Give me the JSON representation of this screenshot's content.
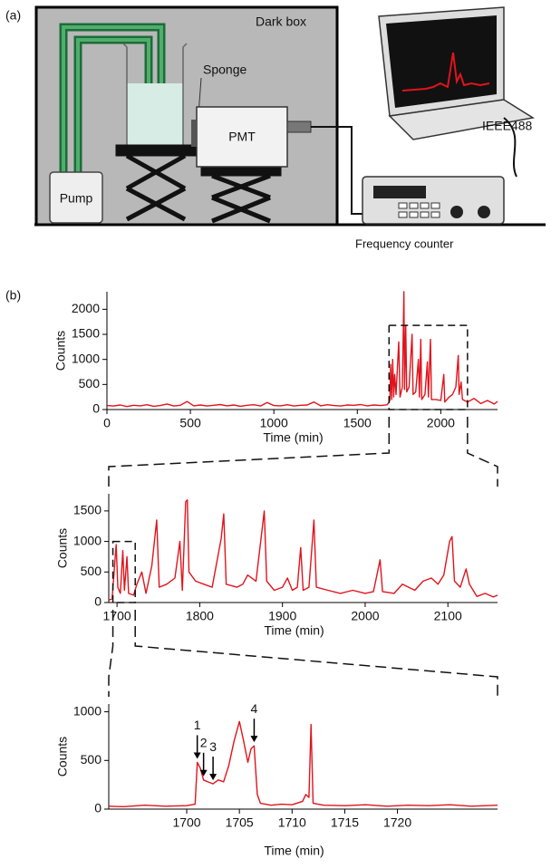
{
  "diagram": {
    "panel_label": "(a)",
    "dark_box": "Dark box",
    "sponge": "Sponge",
    "pmt": "PMT",
    "pump": "Pump",
    "interface": "IEEE488",
    "counter": "Frequency counter"
  },
  "panel_b_label": "(b)",
  "chart_data": [
    {
      "type": "line",
      "x_label": "Time (min)",
      "y_label": "Counts",
      "color": "#e0141c",
      "xlim": [
        0,
        2340
      ],
      "ylim": [
        0,
        2350
      ],
      "xticks": [
        0,
        500,
        1000,
        1500,
        2000
      ],
      "yticks": [
        0,
        500,
        1000,
        1500,
        2000
      ],
      "zoom_box": {
        "xlim": [
          1690,
          2160
        ],
        "ylim": [
          0,
          1680
        ]
      },
      "x": [
        0,
        40,
        80,
        120,
        160,
        200,
        240,
        280,
        320,
        360,
        400,
        440,
        480,
        520,
        560,
        600,
        640,
        680,
        720,
        760,
        800,
        840,
        880,
        920,
        960,
        1000,
        1040,
        1080,
        1120,
        1160,
        1200,
        1240,
        1280,
        1320,
        1360,
        1400,
        1440,
        1480,
        1520,
        1560,
        1600,
        1640,
        1680,
        1695,
        1700,
        1706,
        1712,
        1718,
        1724,
        1732,
        1748,
        1756,
        1770,
        1779,
        1783,
        1790,
        1796,
        1810,
        1828,
        1834,
        1850,
        1866,
        1872,
        1880,
        1886,
        1905,
        1920,
        1926,
        1938,
        1944,
        1970,
        2000,
        2018,
        2024,
        2050,
        2070,
        2090,
        2105,
        2110,
        2122,
        2130,
        2160,
        2200,
        2240,
        2280,
        2320,
        2340
      ],
      "values": [
        80,
        70,
        90,
        60,
        85,
        75,
        95,
        65,
        80,
        110,
        70,
        85,
        160,
        75,
        90,
        70,
        85,
        100,
        75,
        90,
        65,
        85,
        95,
        70,
        140,
        80,
        75,
        95,
        70,
        85,
        90,
        150,
        75,
        95,
        80,
        70,
        90,
        85,
        100,
        75,
        90,
        80,
        95,
        180,
        900,
        200,
        1000,
        250,
        700,
        300,
        1350,
        250,
        450,
        2350,
        400,
        1680,
        350,
        450,
        1500,
        300,
        350,
        1000,
        250,
        1400,
        200,
        300,
        950,
        250,
        1400,
        200,
        200,
        180,
        700,
        150,
        250,
        300,
        450,
        1080,
        300,
        550,
        200,
        150,
        220,
        120,
        180,
        110,
        160
      ]
    },
    {
      "type": "line",
      "x_label": "Time (min)",
      "y_label": "Counts",
      "color": "#e0141c",
      "xlim": [
        1690,
        2160
      ],
      "ylim": [
        0,
        1780
      ],
      "xticks": [
        1700,
        1800,
        1900,
        2000,
        2100
      ],
      "yticks": [
        0,
        500,
        1000,
        1500
      ],
      "zoom_box": {
        "xlim": [
          1695,
          1722
        ],
        "ylim": [
          0,
          1000
        ]
      },
      "x": [
        1690,
        1694,
        1697,
        1699,
        1701,
        1704,
        1707,
        1709,
        1712,
        1714,
        1720,
        1724,
        1730,
        1735,
        1742,
        1748,
        1751,
        1760,
        1770,
        1776,
        1779,
        1783,
        1785,
        1787,
        1795,
        1805,
        1815,
        1826,
        1829,
        1832,
        1845,
        1852,
        1858,
        1868,
        1878,
        1881,
        1890,
        1900,
        1906,
        1912,
        1918,
        1922,
        1925,
        1932,
        1938,
        1941,
        1955,
        1970,
        1985,
        2000,
        2010,
        2018,
        2021,
        2035,
        2045,
        2060,
        2070,
        2080,
        2088,
        2095,
        2102,
        2105,
        2108,
        2115,
        2122,
        2126,
        2135,
        2145,
        2155,
        2160
      ],
      "values": [
        40,
        60,
        600,
        950,
        250,
        150,
        850,
        200,
        750,
        150,
        120,
        300,
        500,
        150,
        600,
        1350,
        250,
        300,
        400,
        1000,
        200,
        1650,
        1680,
        500,
        350,
        300,
        250,
        1050,
        1450,
        300,
        250,
        300,
        450,
        350,
        1500,
        350,
        200,
        250,
        400,
        200,
        250,
        900,
        200,
        250,
        1350,
        250,
        200,
        150,
        200,
        150,
        180,
        700,
        180,
        150,
        300,
        200,
        350,
        400,
        300,
        450,
        1000,
        1080,
        350,
        250,
        550,
        300,
        100,
        150,
        90,
        120
      ]
    },
    {
      "type": "line",
      "x_label": "Time (min)",
      "y_label": "Counts",
      "color": "#e0141c",
      "xlim": [
        1692.6,
        1729.5
      ],
      "ylim": [
        0,
        1080
      ],
      "xticks": [
        1700,
        1705,
        1710,
        1715,
        1720
      ],
      "yticks": [
        0,
        500,
        1000
      ],
      "x": [
        1692.6,
        1694,
        1696,
        1698,
        1700,
        1700.8,
        1701,
        1701.3,
        1701.6,
        1702,
        1702.5,
        1703,
        1703.5,
        1704,
        1704.5,
        1705,
        1705.4,
        1705.8,
        1706.1,
        1706.4,
        1706.7,
        1707,
        1708,
        1709,
        1710,
        1711,
        1711.3,
        1711.6,
        1711.8,
        1712,
        1713,
        1715,
        1717,
        1719,
        1721,
        1723,
        1725,
        1727,
        1729.5
      ],
      "values": [
        30,
        25,
        40,
        30,
        35,
        50,
        480,
        420,
        300,
        280,
        260,
        300,
        280,
        450,
        700,
        900,
        700,
        480,
        620,
        650,
        150,
        60,
        40,
        50,
        45,
        80,
        150,
        120,
        870,
        60,
        40,
        35,
        45,
        30,
        40,
        35,
        45,
        30,
        40
      ],
      "annotations": [
        {
          "text": "1",
          "x": 1701,
          "y": 480
        },
        {
          "text": "2",
          "x": 1701.6,
          "y": 300
        },
        {
          "text": "3",
          "x": 1702.5,
          "y": 260
        },
        {
          "text": "4",
          "x": 1706.4,
          "y": 650
        }
      ]
    }
  ]
}
